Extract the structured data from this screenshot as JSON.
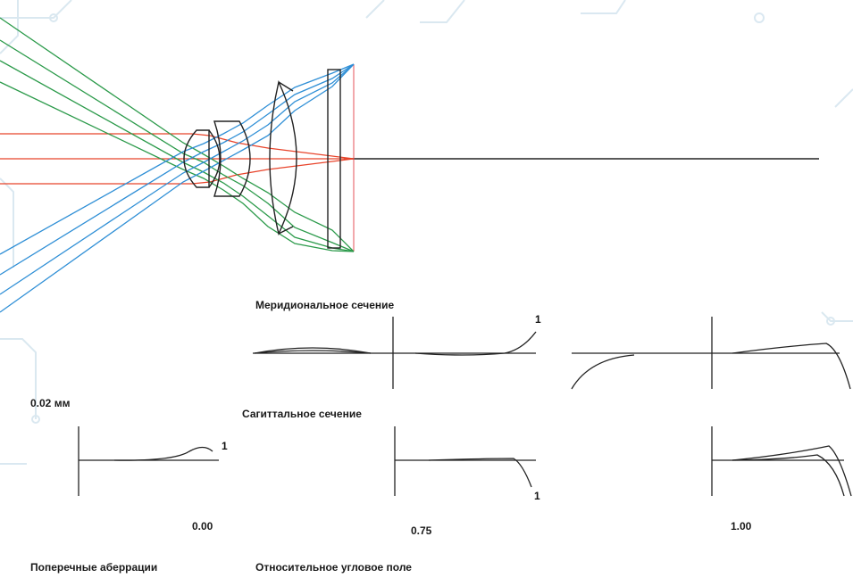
{
  "colors": {
    "background": "#ffffff",
    "circuit_pattern": "#d9e7f0",
    "ray_red": "#e8432a",
    "ray_green": "#2b9a4a",
    "ray_blue": "#2f8fd6",
    "outline": "#222222",
    "image_plane": "#e6505a"
  },
  "sections": {
    "meridional_title": "Меридиональное сечение",
    "sagittal_title": "Сагиттальное сечение"
  },
  "scale_label": "0.02 мм",
  "markers": {
    "meridional_one": "1",
    "sagittal_left_one": "1",
    "sagittal_mid_one": "1"
  },
  "field_values": {
    "field_0": "0.00",
    "field_1": "0.75",
    "field_2": "1.00"
  },
  "footer": {
    "left": "Поперечные аберрации",
    "right": "Относительное угловое поле"
  }
}
